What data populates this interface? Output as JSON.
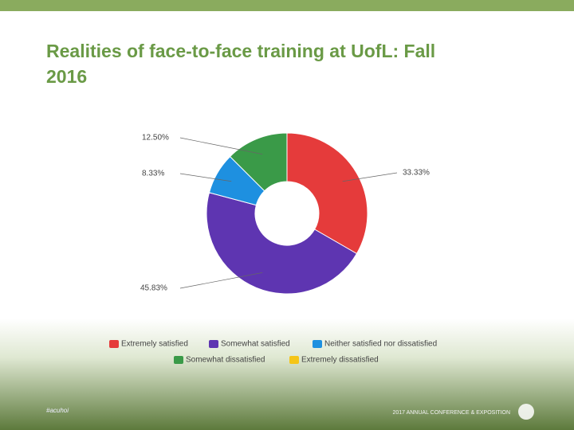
{
  "chart_data": {
    "type": "pie",
    "donut": true,
    "title": "Realities of face-to-face training at UofL: Fall 2016",
    "categories": [
      "Extremely satisfied",
      "Somewhat satisfied",
      "Neither satisfied nor dissatisfied",
      "Somewhat dissatisfied",
      "Extremely dissatisfied"
    ],
    "values": [
      33.33,
      45.83,
      8.33,
      12.5,
      0
    ],
    "value_labels": [
      "33.33%",
      "45.83%",
      "8.33%",
      "12.50%",
      null
    ],
    "colors": [
      "#e53b3b",
      "#5e35b1",
      "#1e90e0",
      "#3a9a48",
      "#f5c518"
    ],
    "legend": "bottom"
  },
  "footer": {
    "hashtag": "#acuhoi",
    "event": "2017 ANNUAL CONFERENCE & EXPOSITION"
  }
}
